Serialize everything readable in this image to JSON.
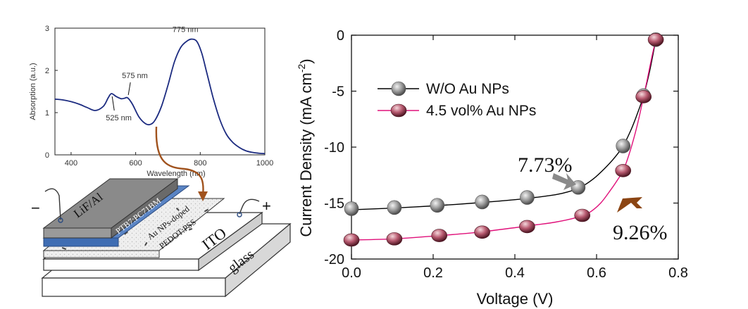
{
  "chart_data": [
    {
      "type": "line",
      "xlabel": "Wavelength (nm)",
      "ylabel": "Absorption (a.u.)",
      "xlim": [
        350,
        1000
      ],
      "ylim": [
        0,
        3
      ],
      "xticks": [
        400,
        600,
        800,
        1000
      ],
      "yticks": [
        0,
        1,
        2,
        3
      ],
      "series": [
        {
          "color": "#1c2b80",
          "x": [
            350,
            375,
            400,
            425,
            450,
            475,
            500,
            515,
            525,
            540,
            555,
            565,
            575,
            590,
            610,
            630,
            645,
            660,
            680,
            700,
            720,
            740,
            760,
            775,
            790,
            805,
            820,
            840,
            860,
            880,
            900,
            920,
            940,
            960,
            980,
            1000
          ],
          "y": [
            1.32,
            1.3,
            1.26,
            1.2,
            1.12,
            1.05,
            1.15,
            1.35,
            1.45,
            1.38,
            1.33,
            1.34,
            1.35,
            1.2,
            0.9,
            0.74,
            0.72,
            0.82,
            1.15,
            1.65,
            2.2,
            2.55,
            2.7,
            2.74,
            2.68,
            2.4,
            1.95,
            1.35,
            0.85,
            0.5,
            0.3,
            0.18,
            0.1,
            0.06,
            0.04,
            0.03
          ]
        }
      ],
      "annotations": [
        {
          "text": "775 nm",
          "x": 775,
          "y": 2.74
        },
        {
          "text": "575 nm",
          "x": 575,
          "y": 1.35
        },
        {
          "text": "525 nm",
          "x": 525,
          "y": 1.45
        }
      ]
    },
    {
      "type": "line",
      "xlabel": "Voltage (V)",
      "ylabel": "Current Density (mA cm-2)",
      "xlim": [
        0,
        0.8
      ],
      "ylim": [
        -20,
        0
      ],
      "xticks": [
        0.0,
        0.2,
        0.4,
        0.6,
        0.8
      ],
      "xtick_labels": [
        "0.0",
        "0.2",
        "0.4",
        "0.6",
        "0.8"
      ],
      "yticks": [
        -20,
        -15,
        -10,
        -5,
        0
      ],
      "series": [
        {
          "name": "W/O Au NPs",
          "line_color": "#000000",
          "marker_color": "#8a8a8a",
          "x": [
            0,
            0.105,
            0.21,
            0.32,
            0.43,
            0.555,
            0.665,
            0.715,
            0.745
          ],
          "y": [
            -15.5,
            -15.4,
            -15.2,
            -14.9,
            -14.5,
            -13.6,
            -9.9,
            -5.4,
            -0.4
          ],
          "curve_x": [
            0,
            0.1,
            0.2,
            0.3,
            0.4,
            0.45,
            0.5,
            0.53,
            0.56,
            0.59,
            0.62,
            0.645,
            0.665,
            0.685,
            0.7,
            0.715,
            0.73,
            0.745
          ],
          "curve_y": [
            -15.6,
            -15.45,
            -15.25,
            -15.0,
            -14.7,
            -14.5,
            -14.25,
            -14.0,
            -13.6,
            -12.9,
            -11.9,
            -10.9,
            -9.9,
            -8.4,
            -7.0,
            -5.4,
            -3.2,
            -0.4
          ]
        },
        {
          "name": "4.5 vol% Au NPs",
          "line_color": "#e0107a",
          "marker_color": "#b85a70",
          "x": [
            0,
            0.105,
            0.215,
            0.32,
            0.43,
            0.565,
            0.665,
            0.715,
            0.745
          ],
          "y": [
            -18.3,
            -18.2,
            -17.9,
            -17.6,
            -17.1,
            -16.1,
            -12.1,
            -5.5,
            -0.4
          ],
          "curve_x": [
            0,
            0.1,
            0.2,
            0.3,
            0.4,
            0.45,
            0.5,
            0.55,
            0.58,
            0.61,
            0.635,
            0.65,
            0.665,
            0.68,
            0.695,
            0.705,
            0.715,
            0.725,
            0.735,
            0.745
          ],
          "curve_y": [
            -18.3,
            -18.2,
            -17.95,
            -17.65,
            -17.2,
            -16.95,
            -16.7,
            -16.3,
            -15.9,
            -15.0,
            -13.8,
            -13.0,
            -12.1,
            -10.6,
            -8.7,
            -7.2,
            -5.5,
            -3.8,
            -2.0,
            -0.4
          ]
        }
      ],
      "annotations": [
        {
          "text": "7.73%",
          "color": "#8a8a8a"
        },
        {
          "text": "9.26%",
          "color": "#8b4513"
        }
      ]
    }
  ],
  "device": {
    "layers": [
      "LiF/Al",
      "PTB7:PC71BM",
      "Au NPs-doped",
      "PEDOT:PSS",
      "ITO",
      "glass"
    ],
    "minus": "−",
    "plus": "+"
  },
  "colors": {
    "absorption_line": "#1c2b80",
    "connector_arrow": "#a0521d",
    "wo_line": "#000000",
    "au_line": "#e0107a"
  }
}
